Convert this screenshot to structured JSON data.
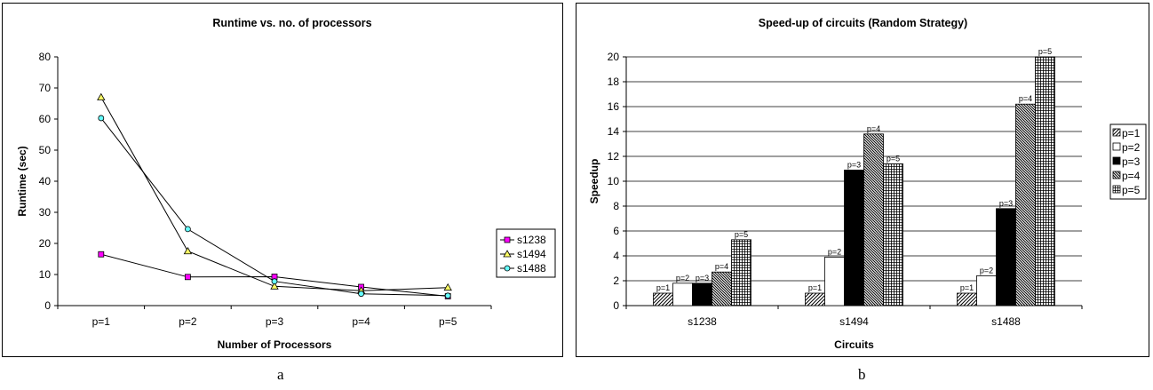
{
  "chart_data": [
    {
      "type": "line",
      "title": "Runtime vs. no. of processors",
      "xlabel": "Number of Processors",
      "ylabel": "Runtime (sec)",
      "categories": [
        "p=1",
        "p=2",
        "p=3",
        "p=4",
        "p=5"
      ],
      "ylim": [
        0,
        80
      ],
      "yticks": [
        0,
        10,
        20,
        30,
        40,
        50,
        60,
        70,
        80
      ],
      "grid": false,
      "legend": "right",
      "series": [
        {
          "name": "s1238",
          "values": [
            16.5,
            9.2,
            9.3,
            6.0,
            3.0
          ],
          "color": "#ff00ff",
          "marker": "square"
        },
        {
          "name": "s1494",
          "values": [
            67,
            17.5,
            6.2,
            4.8,
            5.8
          ],
          "color": "#ffff66",
          "marker": "triangle"
        },
        {
          "name": "s1488",
          "values": [
            60.3,
            24.6,
            7.8,
            3.8,
            3.2
          ],
          "color": "#66ffff",
          "marker": "circle"
        }
      ]
    },
    {
      "type": "bar",
      "title": "Speed-up of circuits (Random Strategy)",
      "xlabel": "Circuits",
      "ylabel": "Speedup",
      "categories": [
        "s1238",
        "s1494",
        "s1488"
      ],
      "ylim": [
        0,
        20
      ],
      "yticks": [
        0,
        2,
        4,
        6,
        8,
        10,
        12,
        14,
        16,
        18,
        20
      ],
      "grid": true,
      "legend": "right",
      "series": [
        {
          "name": "p=1",
          "values": [
            1.0,
            1.0,
            1.0
          ],
          "pattern": "diag"
        },
        {
          "name": "p=2",
          "values": [
            1.8,
            3.9,
            2.4
          ],
          "pattern": "white"
        },
        {
          "name": "p=3",
          "values": [
            1.8,
            10.9,
            7.8
          ],
          "pattern": "black"
        },
        {
          "name": "p=4",
          "values": [
            2.7,
            13.8,
            16.2
          ],
          "pattern": "dense"
        },
        {
          "name": "p=5",
          "values": [
            5.3,
            11.4,
            20.0
          ],
          "pattern": "grid"
        }
      ]
    }
  ],
  "captions": {
    "a": "a",
    "b": "b"
  }
}
